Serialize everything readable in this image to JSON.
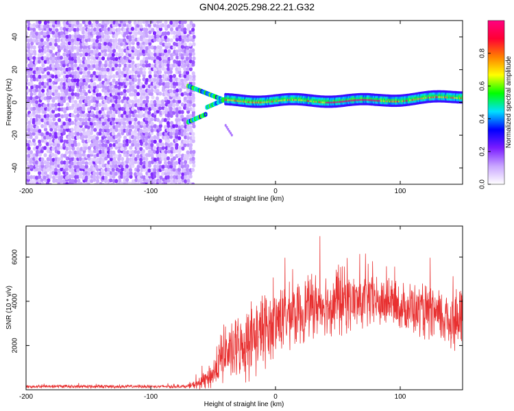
{
  "title": "GN04.2025.298.22.21.G32",
  "chart_data": [
    {
      "type": "heatmap",
      "xlabel": "Height of straight line (km)",
      "ylabel": "Frequency (Hz)",
      "xlim": [
        -200,
        150
      ],
      "ylim": [
        -50,
        50
      ],
      "xticks": [
        "-200",
        "-100",
        "0",
        "100"
      ],
      "xtick_values": [
        -200,
        -100,
        0,
        100
      ],
      "yticks": [
        "-40",
        "-20",
        "0",
        "20",
        "40"
      ],
      "ytick_values": [
        -40,
        -20,
        0,
        20,
        40
      ],
      "colorbar": {
        "label": "Normalized spectral amplitude",
        "range": [
          0,
          1
        ],
        "ticks": [
          "0.0",
          "0.2",
          "0.4",
          "0.6",
          "0.8"
        ],
        "tick_values": [
          0,
          0.2,
          0.4,
          0.6,
          0.8
        ],
        "colormap": [
          "#ffffff",
          "#c9a6ff",
          "#7a1cff",
          "#0000ff",
          "#00e0ff",
          "#00ff00",
          "#ffff00",
          "#ff8000",
          "#ff0033",
          "#ff0080"
        ]
      },
      "features": {
        "noise_region_x": [
          -200,
          -65
        ],
        "band_center_hz": 0,
        "branch_split_start_x": -70,
        "branch_merge_x": -40,
        "branch_freq_hz": 10
      }
    },
    {
      "type": "line",
      "xlabel": "Height of straight line (km)",
      "ylabel": "SNR (10 * v/v)",
      "xlim": [
        -200,
        150
      ],
      "ylim": [
        0,
        7400
      ],
      "xticks": [
        "-200",
        "-100",
        "0",
        "100"
      ],
      "xtick_values": [
        -200,
        -100,
        0,
        100
      ],
      "yticks": [
        "2000",
        "4000",
        "6000"
      ],
      "ytick_values": [
        2000,
        4000,
        6000
      ],
      "line_color": "#e83030",
      "envelope": {
        "x": [
          -200,
          -70,
          -60,
          -50,
          -45,
          -40,
          -35,
          -30,
          -20,
          -10,
          0,
          10,
          20,
          30,
          40,
          50,
          60,
          70,
          80,
          90,
          100,
          110,
          120,
          130,
          140,
          150
        ],
        "baseline": [
          150,
          150,
          300,
          700,
          1200,
          1800,
          1500,
          1900,
          2200,
          2600,
          3000,
          3300,
          3500,
          3800,
          3900,
          4000,
          4000,
          4000,
          3950,
          3900,
          3800,
          3700,
          3500,
          3300,
          3200,
          3000
        ],
        "spread": [
          80,
          80,
          300,
          700,
          1200,
          1400,
          1000,
          1600,
          2000,
          1800,
          1600,
          1600,
          1500,
          1500,
          1600,
          1700,
          1500,
          1300,
          1200,
          1100,
          1100,
          1200,
          1300,
          1300,
          1400,
          1500
        ]
      }
    }
  ]
}
